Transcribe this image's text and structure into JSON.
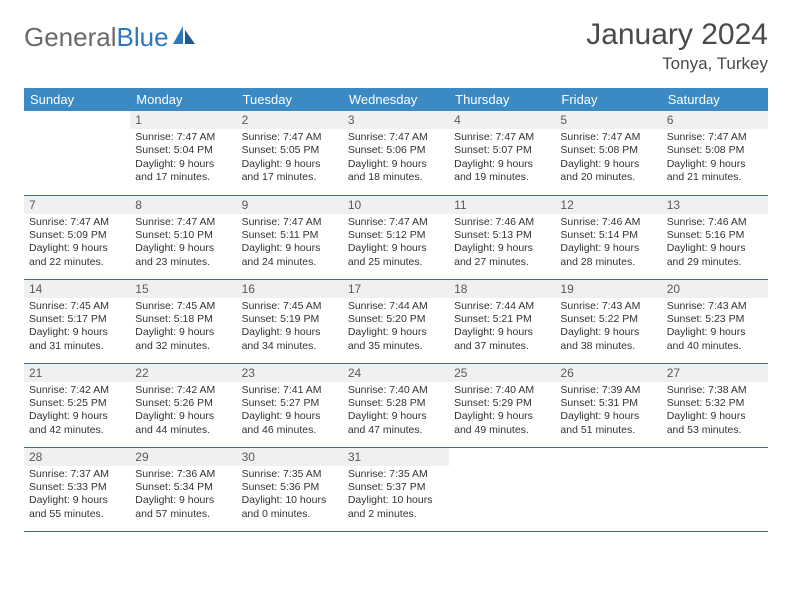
{
  "logo": {
    "text_gray": "General",
    "text_blue": "Blue"
  },
  "title": "January 2024",
  "location": "Tonya, Turkey",
  "colors": {
    "header_bg": "#3b8ac4",
    "header_text": "#ffffff",
    "daynum_bg": "#eef0f1",
    "row_border": "#3b6fa0",
    "logo_gray": "#6a6a6a",
    "logo_blue": "#2f78bd",
    "text_color": "#333333",
    "title_color": "#4a4a4a"
  },
  "weekdays": [
    "Sunday",
    "Monday",
    "Tuesday",
    "Wednesday",
    "Thursday",
    "Friday",
    "Saturday"
  ],
  "weeks": [
    [
      null,
      {
        "n": "1",
        "sr": "7:47 AM",
        "ss": "5:04 PM",
        "dl": "9 hours and 17 minutes."
      },
      {
        "n": "2",
        "sr": "7:47 AM",
        "ss": "5:05 PM",
        "dl": "9 hours and 17 minutes."
      },
      {
        "n": "3",
        "sr": "7:47 AM",
        "ss": "5:06 PM",
        "dl": "9 hours and 18 minutes."
      },
      {
        "n": "4",
        "sr": "7:47 AM",
        "ss": "5:07 PM",
        "dl": "9 hours and 19 minutes."
      },
      {
        "n": "5",
        "sr": "7:47 AM",
        "ss": "5:08 PM",
        "dl": "9 hours and 20 minutes."
      },
      {
        "n": "6",
        "sr": "7:47 AM",
        "ss": "5:08 PM",
        "dl": "9 hours and 21 minutes."
      }
    ],
    [
      {
        "n": "7",
        "sr": "7:47 AM",
        "ss": "5:09 PM",
        "dl": "9 hours and 22 minutes."
      },
      {
        "n": "8",
        "sr": "7:47 AM",
        "ss": "5:10 PM",
        "dl": "9 hours and 23 minutes."
      },
      {
        "n": "9",
        "sr": "7:47 AM",
        "ss": "5:11 PM",
        "dl": "9 hours and 24 minutes."
      },
      {
        "n": "10",
        "sr": "7:47 AM",
        "ss": "5:12 PM",
        "dl": "9 hours and 25 minutes."
      },
      {
        "n": "11",
        "sr": "7:46 AM",
        "ss": "5:13 PM",
        "dl": "9 hours and 27 minutes."
      },
      {
        "n": "12",
        "sr": "7:46 AM",
        "ss": "5:14 PM",
        "dl": "9 hours and 28 minutes."
      },
      {
        "n": "13",
        "sr": "7:46 AM",
        "ss": "5:16 PM",
        "dl": "9 hours and 29 minutes."
      }
    ],
    [
      {
        "n": "14",
        "sr": "7:45 AM",
        "ss": "5:17 PM",
        "dl": "9 hours and 31 minutes."
      },
      {
        "n": "15",
        "sr": "7:45 AM",
        "ss": "5:18 PM",
        "dl": "9 hours and 32 minutes."
      },
      {
        "n": "16",
        "sr": "7:45 AM",
        "ss": "5:19 PM",
        "dl": "9 hours and 34 minutes."
      },
      {
        "n": "17",
        "sr": "7:44 AM",
        "ss": "5:20 PM",
        "dl": "9 hours and 35 minutes."
      },
      {
        "n": "18",
        "sr": "7:44 AM",
        "ss": "5:21 PM",
        "dl": "9 hours and 37 minutes."
      },
      {
        "n": "19",
        "sr": "7:43 AM",
        "ss": "5:22 PM",
        "dl": "9 hours and 38 minutes."
      },
      {
        "n": "20",
        "sr": "7:43 AM",
        "ss": "5:23 PM",
        "dl": "9 hours and 40 minutes."
      }
    ],
    [
      {
        "n": "21",
        "sr": "7:42 AM",
        "ss": "5:25 PM",
        "dl": "9 hours and 42 minutes."
      },
      {
        "n": "22",
        "sr": "7:42 AM",
        "ss": "5:26 PM",
        "dl": "9 hours and 44 minutes."
      },
      {
        "n": "23",
        "sr": "7:41 AM",
        "ss": "5:27 PM",
        "dl": "9 hours and 46 minutes."
      },
      {
        "n": "24",
        "sr": "7:40 AM",
        "ss": "5:28 PM",
        "dl": "9 hours and 47 minutes."
      },
      {
        "n": "25",
        "sr": "7:40 AM",
        "ss": "5:29 PM",
        "dl": "9 hours and 49 minutes."
      },
      {
        "n": "26",
        "sr": "7:39 AM",
        "ss": "5:31 PM",
        "dl": "9 hours and 51 minutes."
      },
      {
        "n": "27",
        "sr": "7:38 AM",
        "ss": "5:32 PM",
        "dl": "9 hours and 53 minutes."
      }
    ],
    [
      {
        "n": "28",
        "sr": "7:37 AM",
        "ss": "5:33 PM",
        "dl": "9 hours and 55 minutes."
      },
      {
        "n": "29",
        "sr": "7:36 AM",
        "ss": "5:34 PM",
        "dl": "9 hours and 57 minutes."
      },
      {
        "n": "30",
        "sr": "7:35 AM",
        "ss": "5:36 PM",
        "dl": "10 hours and 0 minutes."
      },
      {
        "n": "31",
        "sr": "7:35 AM",
        "ss": "5:37 PM",
        "dl": "10 hours and 2 minutes."
      },
      null,
      null,
      null
    ]
  ],
  "labels": {
    "sunrise": "Sunrise:",
    "sunset": "Sunset:",
    "daylight": "Daylight:"
  }
}
